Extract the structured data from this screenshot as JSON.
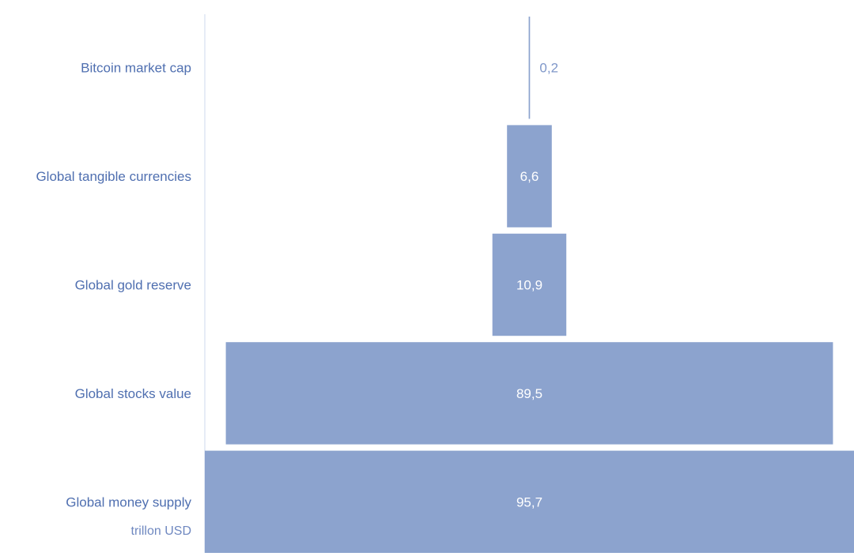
{
  "chart_data": {
    "type": "bar",
    "orientation": "horizontal-funnel",
    "categories": [
      "Bitcoin market cap",
      "Global tangible currencies",
      "Global gold reserve",
      "Global stocks value",
      "Global money supply"
    ],
    "values": [
      0.2,
      6.6,
      10.9,
      89.5,
      95.7
    ],
    "value_labels": [
      "0,2",
      "6,6",
      "10,9",
      "89,5",
      "95,7"
    ],
    "unit_label": "trillon USD",
    "bar_color": "#8ca3ce",
    "label_color": "#4f6fb0",
    "value_label_inside_color": "#ffffff",
    "value_label_outside_color": "#7f97c9",
    "xlim": [
      0,
      95.7
    ],
    "grid": false,
    "legend": "none"
  }
}
